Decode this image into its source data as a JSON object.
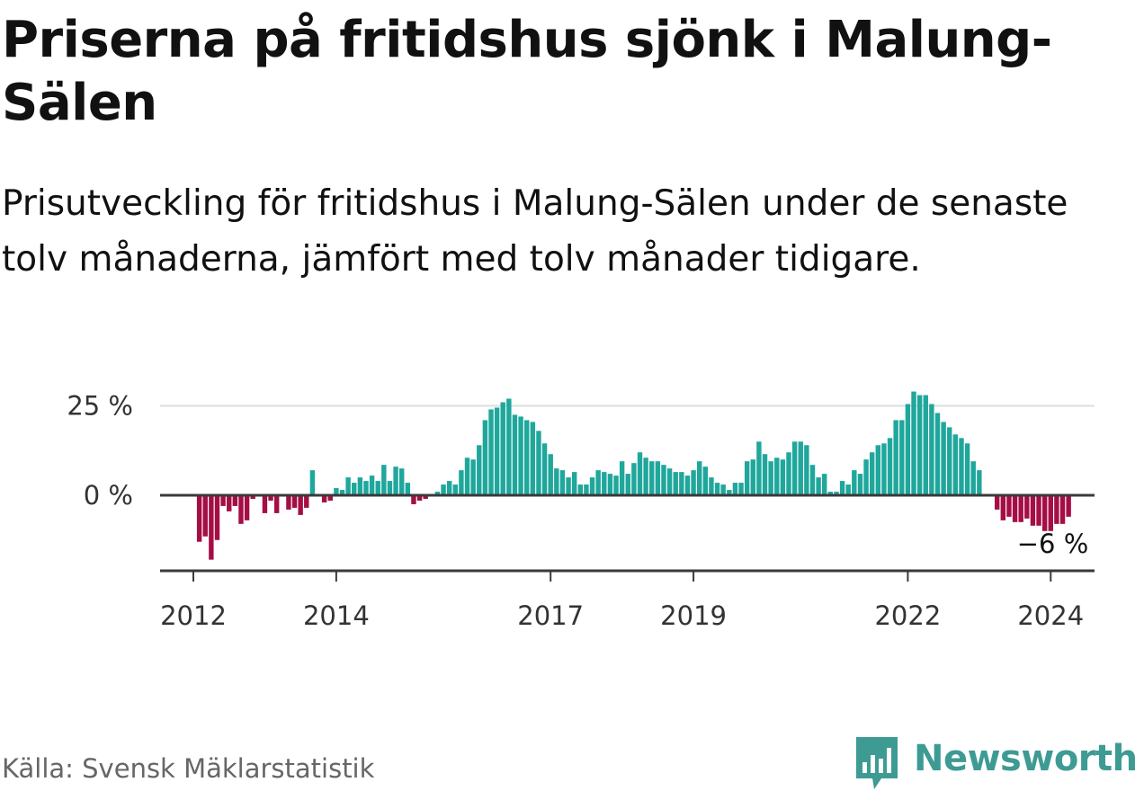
{
  "header": {
    "title": "Priserna på fritidshus sjönk i Malung-Sälen",
    "subtitle": "Prisutveckling för fritidshus i Malung-Sälen under de senaste tolv månaderna, jämfört med tolv månader tidigare."
  },
  "footer": {
    "source": "Källa: Svensk Mäklarstatistik",
    "brand": "Newsworthy"
  },
  "colors": {
    "positive": "#1fa79c",
    "negative": "#a50e45",
    "axis": "#3a3a3a",
    "grid": "#dddddd",
    "brand": "#3d9b94"
  },
  "chart_data": {
    "type": "bar",
    "title": "Priserna på fritidshus sjönk i Malung-Sälen",
    "subtitle": "Prisutveckling för fritidshus i Malung-Sälen under de senaste tolv månaderna, jämfört med tolv månader tidigare.",
    "unit": "%",
    "start": "2012-02",
    "frequency": "monthly",
    "y_ticks": [
      {
        "value": 0,
        "label": "0 %"
      },
      {
        "value": 25,
        "label": "25 %"
      }
    ],
    "x_ticks": [
      {
        "month": "2012-01",
        "label": "2012"
      },
      {
        "month": "2014-01",
        "label": "2014"
      },
      {
        "month": "2017-01",
        "label": "2017"
      },
      {
        "month": "2019-01",
        "label": "2019"
      },
      {
        "month": "2022-01",
        "label": "2022"
      },
      {
        "month": "2024-01",
        "label": "2024"
      }
    ],
    "ylim": [
      -21,
      29
    ],
    "grid": true,
    "annotation": {
      "text": "−6 %",
      "month": "2024-01"
    },
    "values": [
      -13,
      -11.5,
      -18,
      -12.5,
      -3,
      -4.5,
      -3,
      -8,
      -7,
      -1,
      0,
      -5,
      -1.5,
      -5,
      0,
      -4,
      -3.5,
      -5.5,
      -3.5,
      7,
      0,
      -2,
      -1.5,
      2,
      1.5,
      5,
      3.5,
      5,
      4,
      5.5,
      4,
      8.5,
      4,
      8,
      7.5,
      3.5,
      -2.5,
      -1.5,
      -1,
      0,
      1,
      3,
      4,
      3,
      7,
      10.5,
      10,
      14,
      21,
      24,
      24.5,
      26,
      27,
      22.5,
      22,
      21,
      20.5,
      18,
      14.5,
      11.5,
      7.5,
      7,
      5,
      6.5,
      3,
      3,
      5,
      7,
      6.5,
      6,
      5.5,
      9.5,
      6,
      9,
      12,
      10.5,
      9.5,
      9.5,
      8.5,
      7.5,
      6.5,
      6.5,
      5.5,
      7,
      9.5,
      8,
      5,
      3.5,
      3,
      1.5,
      3.5,
      3.5,
      9.5,
      10,
      15,
      11.5,
      9.5,
      10.5,
      10,
      12,
      15,
      15,
      14,
      8.5,
      5,
      6,
      1,
      1,
      4,
      3,
      7,
      6,
      10,
      12,
      14,
      14.5,
      16,
      21,
      21,
      25.5,
      29,
      28,
      28,
      25.5,
      23,
      20.5,
      19,
      17,
      16,
      14.5,
      9.5,
      7,
      0,
      0,
      -4,
      -7,
      -6,
      -7.5,
      -7.5,
      -6.5,
      -8.5,
      -8.5,
      -10,
      -10,
      -8,
      -8,
      -6
    ]
  }
}
